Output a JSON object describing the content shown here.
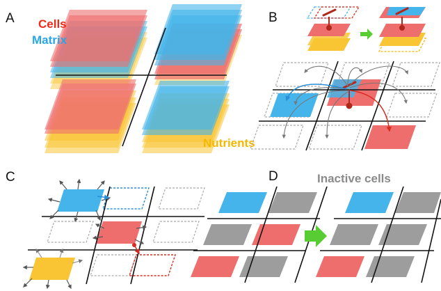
{
  "panels": {
    "a": {
      "letter": "A",
      "cells_label": "Cells",
      "matrix_label": "Matrix",
      "nutrients_label": "Nutrients"
    },
    "b": {
      "letter": "B"
    },
    "c": {
      "letter": "C"
    },
    "d": {
      "letter": "D",
      "inactive_label": "Inactive cells"
    }
  },
  "colors": {
    "cells": "#ee6e6e",
    "cells_dark": "#d62d1f",
    "matrix": "#45b4ea",
    "nutrients": "#f9c534",
    "inactive": "#9d9d9d",
    "arrow_green": "#57cc33",
    "ink": "#111111",
    "gray_arrow": "#777777",
    "dashed": "#aaaaaa"
  }
}
